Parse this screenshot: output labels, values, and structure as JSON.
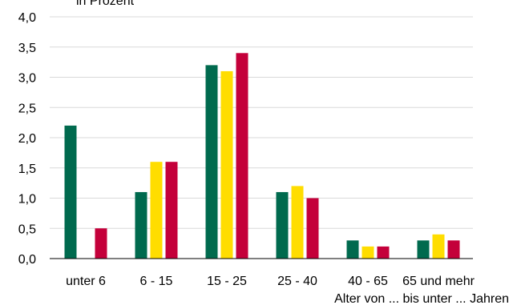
{
  "chart_data": {
    "type": "bar",
    "title": "in Prozent",
    "xlabel": "Alter von ... bis unter ... Jahren",
    "ylabel": "",
    "ylim": [
      0,
      4
    ],
    "y_ticks": [
      "0,0",
      "0,5",
      "1,0",
      "1,5",
      "2,0",
      "2,5",
      "3,0",
      "3,5",
      "4,0"
    ],
    "grid": true,
    "categories": [
      "unter 6",
      "6 - 15",
      "15 - 25",
      "25 - 40",
      "40 - 65",
      "65 und mehr"
    ],
    "series": [
      {
        "color": "#006a4e",
        "values": [
          2.2,
          1.1,
          3.2,
          1.1,
          0.3,
          0.3
        ]
      },
      {
        "color": "#ffdd00",
        "values": [
          0.0,
          1.6,
          3.1,
          1.2,
          0.2,
          0.4
        ]
      },
      {
        "color": "#c4003a",
        "values": [
          0.5,
          1.6,
          3.4,
          1.0,
          0.2,
          0.3
        ]
      }
    ]
  }
}
